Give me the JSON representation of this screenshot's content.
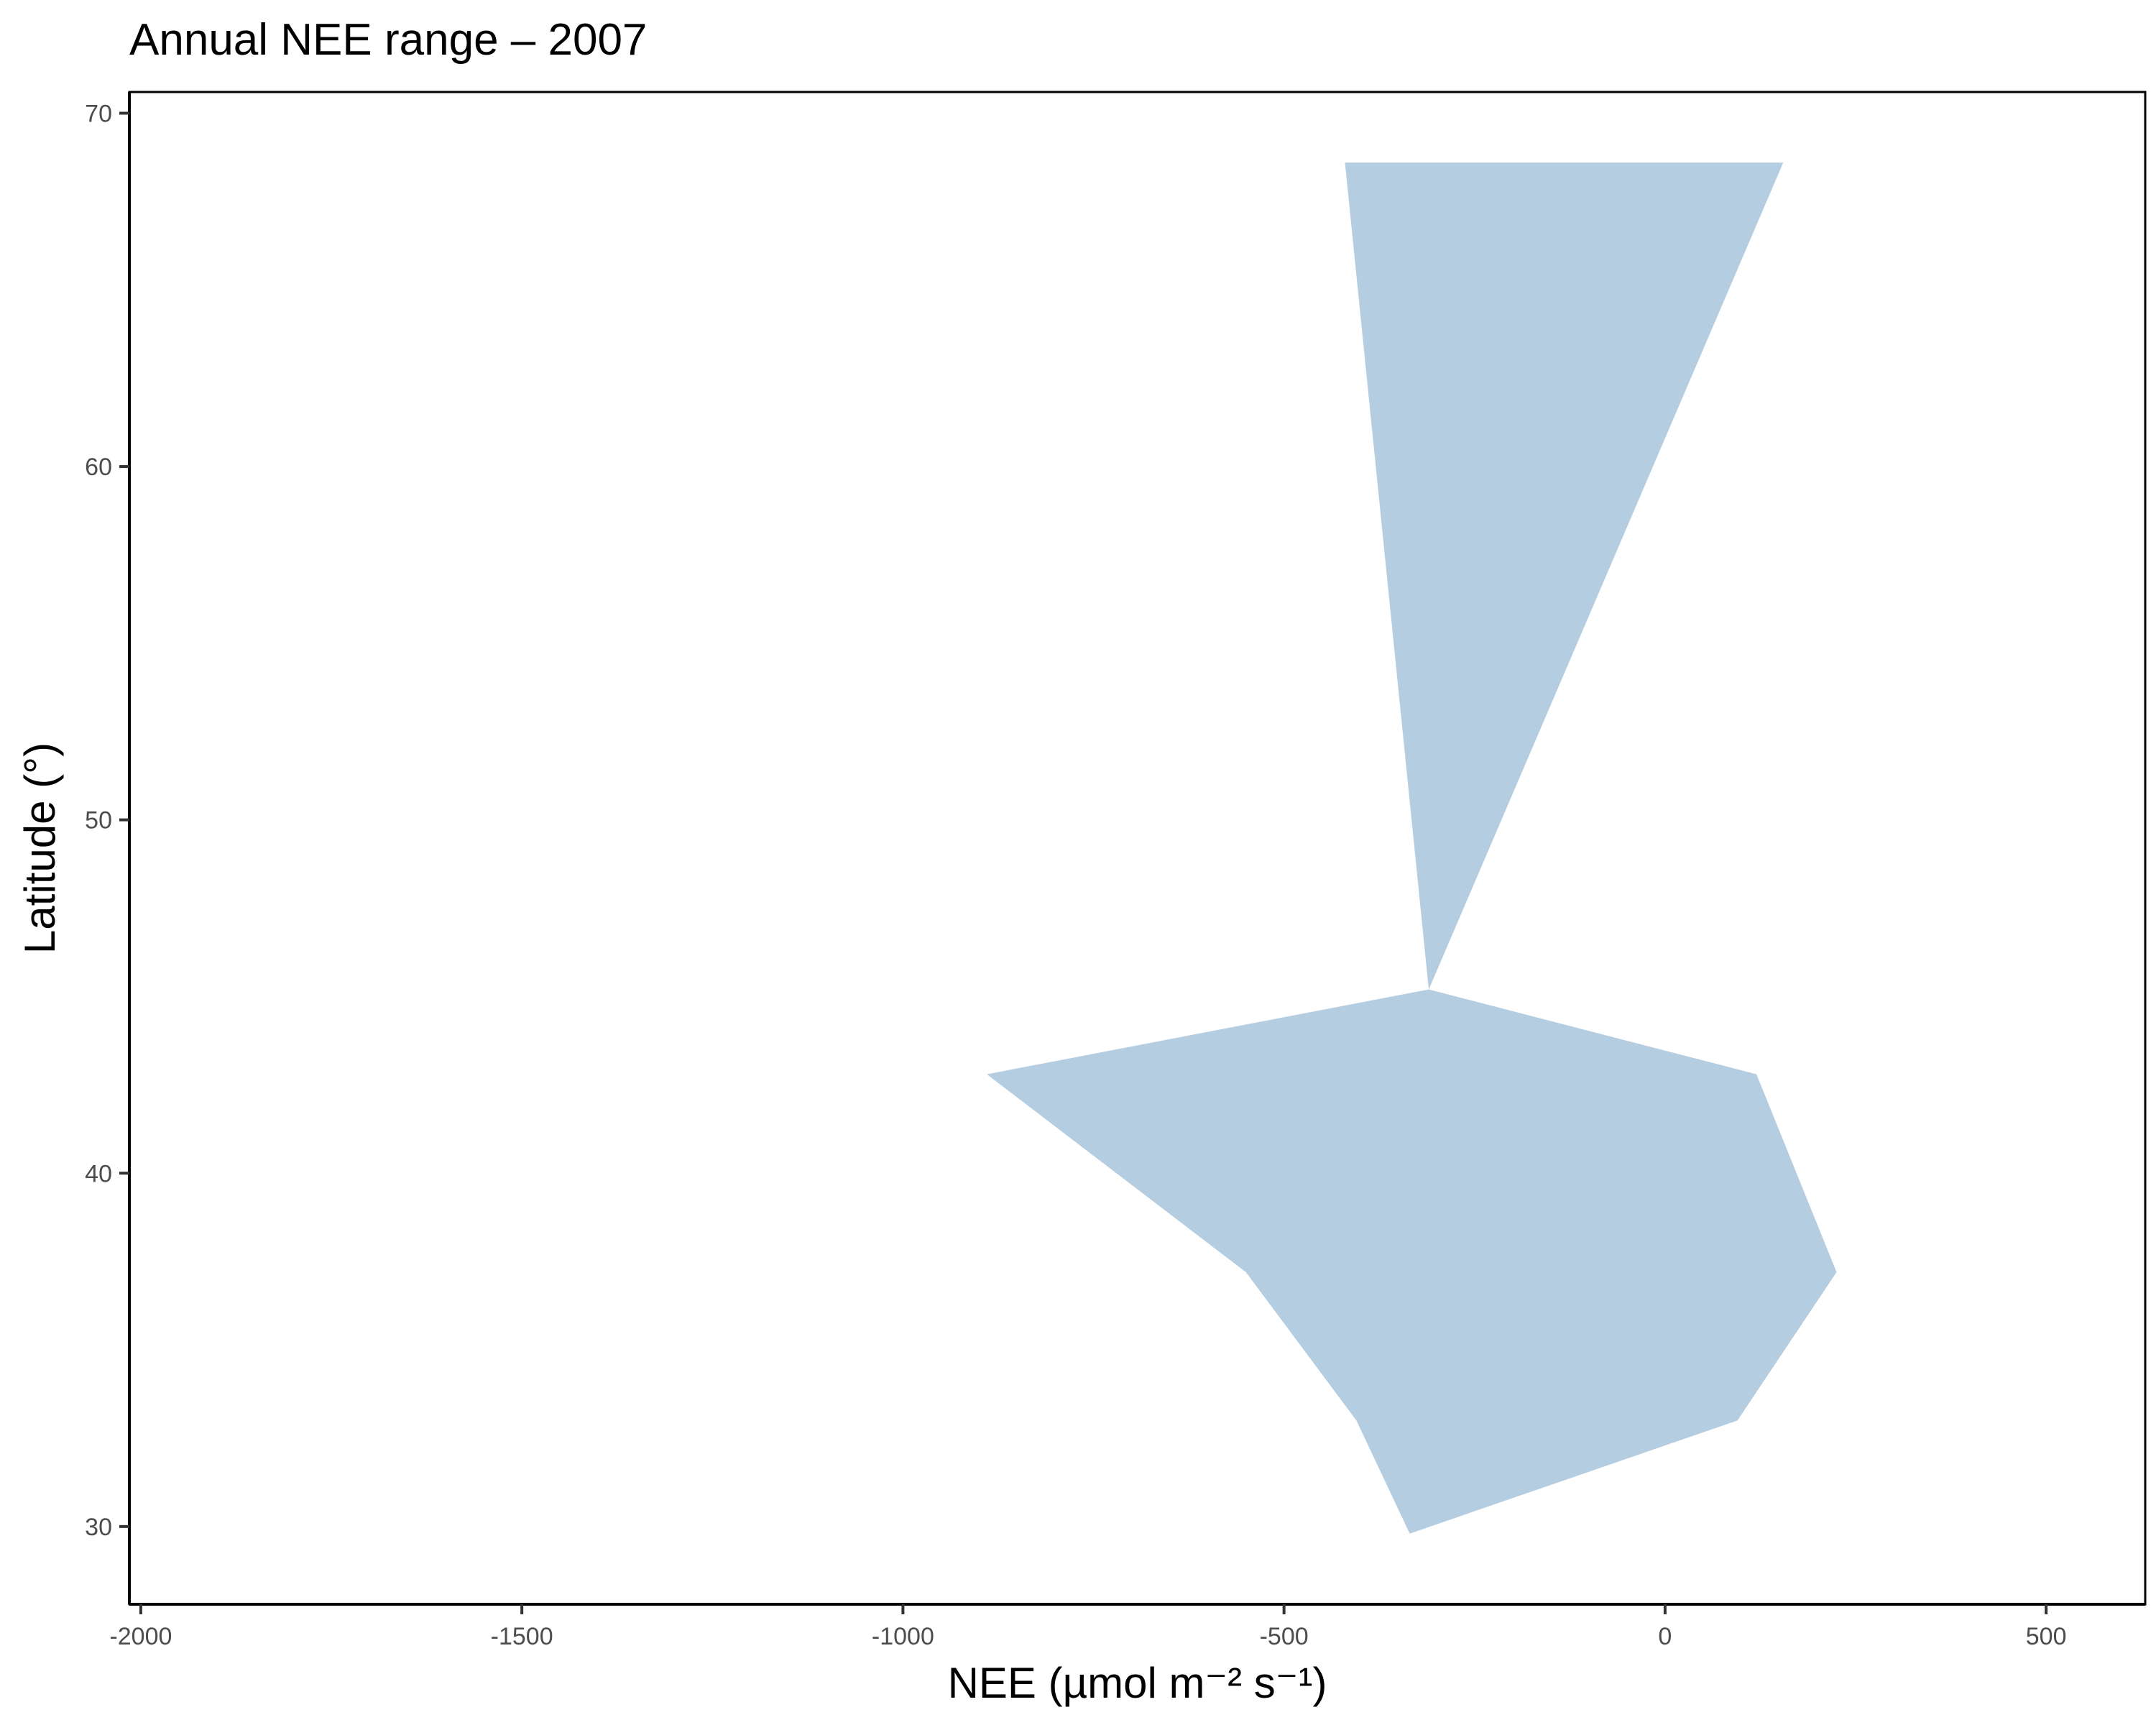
{
  "chart_data": {
    "type": "area",
    "title": "Annual NEE range – 2007",
    "xlabel": "NEE (µmol m⁻² s⁻¹)",
    "ylabel": "Latitude (°)",
    "xlim": [
      -2015,
      630
    ],
    "ylim": [
      27.8,
      70.6
    ],
    "x_ticks": [
      -2000,
      -1500,
      -1000,
      -500,
      0,
      500
    ],
    "x_tick_labels": [
      "-2000",
      "-1500",
      "-1000",
      "-500",
      "0",
      "500"
    ],
    "y_ticks": [
      30,
      40,
      50,
      60,
      70
    ],
    "y_tick_labels": [
      "30",
      "40",
      "50",
      "60",
      "70"
    ],
    "grid": false,
    "legend": "none",
    "fill_color": "#b5cde1",
    "series": [
      {
        "latitude": [
          29.8,
          33.0,
          37.2,
          42.8,
          45.2,
          68.6
        ],
        "min": [
          -335,
          -405,
          -550,
          -890,
          -310,
          -420
        ],
        "max": [
          -335,
          95,
          225,
          120,
          -310,
          155
        ]
      }
    ]
  }
}
